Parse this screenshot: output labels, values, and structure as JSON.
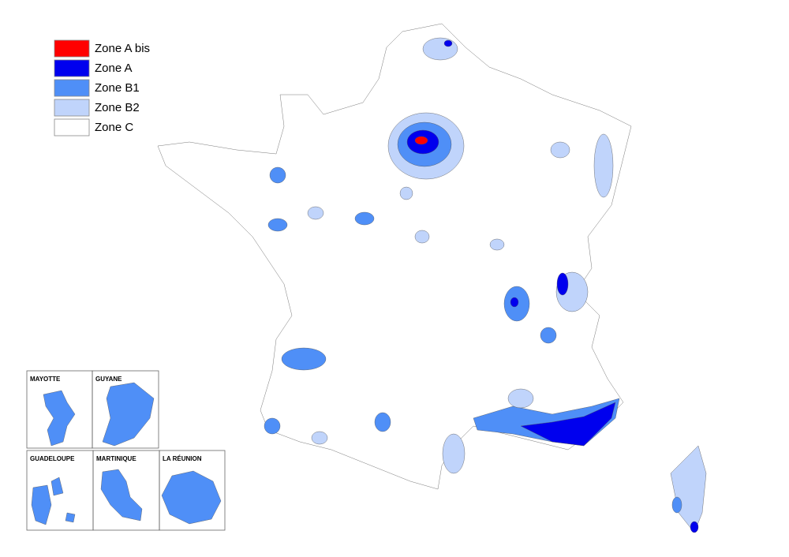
{
  "legend": [
    {
      "label": "Zone A bis",
      "color": "#ff0000"
    },
    {
      "label": "Zone A",
      "color": "#0000ee"
    },
    {
      "label": "Zone B1",
      "color": "#4f8ff7"
    },
    {
      "label": "Zone B2",
      "color": "#c0d4fb"
    },
    {
      "label": "Zone C",
      "color": "#ffffff"
    }
  ],
  "insets": [
    {
      "label": "MAYOTTE"
    },
    {
      "label": "GUYANE"
    },
    {
      "label": "GUADELOUPE"
    },
    {
      "label": "MARTINIQUE"
    },
    {
      "label": "LA RÉUNION"
    }
  ]
}
